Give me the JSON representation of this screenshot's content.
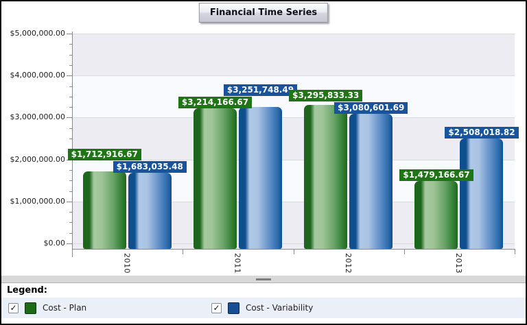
{
  "title_button": {
    "label": "Financial Time Series"
  },
  "chart_data": {
    "type": "bar",
    "title": "Financial Time Series",
    "categories": [
      "2010",
      "2011",
      "2012",
      "2013"
    ],
    "series": [
      {
        "name": "Cost - Plan",
        "color": "#1d6b16",
        "label_bg": "#1f7516",
        "values": [
          1712916.67,
          3214166.67,
          3295833.33,
          1479166.67
        ],
        "value_labels": [
          "$1,712,916.67",
          "$3,214,166.67",
          "$3,295,833.33",
          "$1,479,166.67"
        ]
      },
      {
        "name": "Cost - Variability",
        "color": "#164f94",
        "label_bg": "#17549d",
        "values": [
          1683035.48,
          3251748.49,
          3080601.69,
          2508018.82
        ],
        "value_labels": [
          "$1,683,035.48",
          "$3,251,748.49",
          "$3,080,601.69",
          "$2,508,018.82"
        ]
      }
    ],
    "y_axis": {
      "min": 0,
      "max": 5000000,
      "major_step": 1000000,
      "minor_step": 250000,
      "tick_labels": [
        "$0.00",
        "$1,000,000.00",
        "$2,000,000.00",
        "$3,000,000.00",
        "$4,000,000.00",
        "$5,000,000.00"
      ]
    },
    "x_axis_labels_rotated": true,
    "legend_position": "bottom",
    "band_colors": [
      "#ececf2",
      "#f9fafd"
    ]
  },
  "legend": {
    "heading": "Legend:",
    "checkmark": "✓",
    "items": [
      {
        "label": "Cost - Plan",
        "checked": true,
        "color": "#1d6b16"
      },
      {
        "label": "Cost - Variability",
        "checked": true,
        "color": "#164f94"
      }
    ]
  }
}
